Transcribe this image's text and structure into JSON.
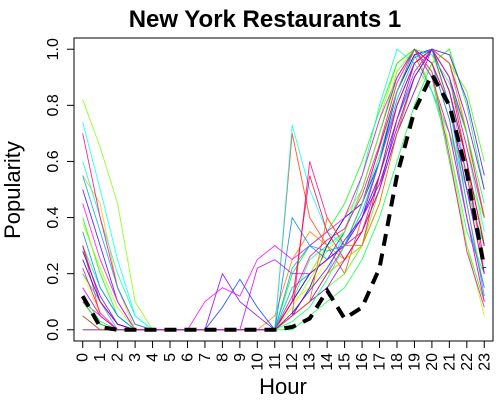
{
  "chart_data": {
    "type": "line",
    "title": "New York Restaurants 1",
    "xlabel": "Hour",
    "ylabel": "Popularity",
    "x": [
      0,
      1,
      2,
      3,
      4,
      5,
      6,
      7,
      8,
      9,
      10,
      11,
      12,
      13,
      14,
      15,
      16,
      17,
      18,
      19,
      20,
      21,
      22,
      23
    ],
    "x_tick_labels": [
      "0",
      "1",
      "2",
      "3",
      "4",
      "5",
      "6",
      "7",
      "8",
      "9",
      "10",
      "11",
      "12",
      "13",
      "14",
      "15",
      "16",
      "17",
      "18",
      "19",
      "20",
      "21",
      "22",
      "23"
    ],
    "y_ticks": [
      0.0,
      0.2,
      0.4,
      0.6,
      0.8,
      1.0
    ],
    "y_tick_labels": [
      "0.0",
      "0.2",
      "0.4",
      "0.6",
      "0.8",
      "1.0"
    ],
    "xlim": [
      -0.5,
      23.5
    ],
    "ylim": [
      -0.04,
      1.04
    ],
    "grid": false,
    "series": [
      {
        "color": "#ff0000",
        "values": [
          0.1,
          0.02,
          0,
          0,
          0,
          0,
          0,
          0,
          0,
          0,
          0,
          0,
          0.05,
          0.1,
          0.2,
          0.25,
          0.3,
          0.55,
          0.8,
          0.95,
          1.0,
          0.9,
          0.6,
          0.2
        ]
      },
      {
        "color": "#ff4000",
        "values": [
          0.3,
          0.05,
          0,
          0,
          0,
          0,
          0,
          0,
          0,
          0,
          0,
          0,
          0.7,
          0.4,
          0.3,
          0.2,
          0.4,
          0.6,
          0.85,
          0.98,
          0.85,
          0.7,
          0.4,
          0.1
        ]
      },
      {
        "color": "#ff8000",
        "values": [
          0,
          0,
          0,
          0,
          0,
          0,
          0,
          0,
          0,
          0,
          0,
          0.05,
          0.25,
          0.35,
          0.3,
          0.25,
          0.35,
          0.5,
          0.7,
          0.9,
          1.0,
          0.8,
          0.5,
          0.3
        ]
      },
      {
        "color": "#ffbf00",
        "values": [
          0.55,
          0.45,
          0.15,
          0,
          0,
          0,
          0,
          0,
          0,
          0,
          0,
          0,
          0.1,
          0.2,
          0.3,
          0.4,
          0.5,
          0.7,
          0.9,
          1.0,
          0.95,
          0.75,
          0.45,
          0.15
        ]
      },
      {
        "color": "#ffff00",
        "values": [
          0.2,
          0.05,
          0,
          0,
          0,
          0,
          0,
          0,
          0,
          0,
          0,
          0,
          0.05,
          0.15,
          0.25,
          0.3,
          0.45,
          0.65,
          0.9,
          1.0,
          0.98,
          0.8,
          0.5,
          0.25
        ]
      },
      {
        "color": "#bfff00",
        "values": [
          0,
          0,
          0,
          0,
          0,
          0,
          0,
          0,
          0,
          0,
          0,
          0,
          0.1,
          0.15,
          0.2,
          0.25,
          0.3,
          0.45,
          0.7,
          0.85,
          0.95,
          1.0,
          0.7,
          0.3
        ]
      },
      {
        "color": "#80ff00",
        "values": [
          0.82,
          0.65,
          0.45,
          0.1,
          0,
          0,
          0,
          0,
          0,
          0,
          0,
          0,
          0.15,
          0.2,
          0.3,
          0.4,
          0.55,
          0.75,
          0.95,
          1.0,
          0.9,
          0.7,
          0.55,
          0.4
        ]
      },
      {
        "color": "#40ff00",
        "values": [
          0.05,
          0,
          0,
          0,
          0,
          0,
          0,
          0,
          0,
          0,
          0,
          0,
          0.05,
          0.1,
          0.15,
          0.2,
          0.3,
          0.5,
          0.75,
          0.9,
          1.0,
          0.95,
          0.85,
          0.6
        ]
      },
      {
        "color": "#00ff00",
        "values": [
          0.4,
          0.2,
          0.05,
          0,
          0,
          0,
          0,
          0,
          0,
          0,
          0,
          0,
          0.2,
          0.3,
          0.35,
          0.45,
          0.6,
          0.78,
          0.95,
          1.0,
          0.9,
          0.6,
          0.3,
          0.1
        ]
      },
      {
        "color": "#00ff40",
        "values": [
          0.1,
          0.02,
          0,
          0,
          0,
          0,
          0,
          0,
          0,
          0,
          0,
          0,
          0,
          0.05,
          0.1,
          0.15,
          0.25,
          0.4,
          0.6,
          0.8,
          0.95,
          1.0,
          0.8,
          0.5
        ]
      },
      {
        "color": "#00ff80",
        "values": [
          0.3,
          0.15,
          0.05,
          0,
          0,
          0,
          0,
          0,
          0,
          0,
          0,
          0,
          0.1,
          0.25,
          0.3,
          0.35,
          0.5,
          0.7,
          0.92,
          1.0,
          0.85,
          0.65,
          0.35,
          0.2
        ]
      },
      {
        "color": "#00ffbf",
        "values": [
          0.6,
          0.4,
          0.2,
          0.05,
          0,
          0,
          0,
          0,
          0,
          0,
          0,
          0,
          0.05,
          0.1,
          0.2,
          0.35,
          0.55,
          0.8,
          1.0,
          0.95,
          0.85,
          0.7,
          0.5,
          0.3
        ]
      },
      {
        "color": "#00ffff",
        "values": [
          0.74,
          0.5,
          0.25,
          0.05,
          0,
          0,
          0,
          0,
          0,
          0,
          0,
          0,
          0.73,
          0.5,
          0.35,
          0.3,
          0.4,
          0.55,
          0.8,
          0.95,
          1.0,
          0.9,
          0.65,
          0.35
        ]
      },
      {
        "color": "#00bfff",
        "values": [
          0.2,
          0.1,
          0,
          0,
          0,
          0,
          0,
          0,
          0,
          0,
          0,
          0,
          0.15,
          0.2,
          0.25,
          0.3,
          0.35,
          0.5,
          0.75,
          0.9,
          1.0,
          0.85,
          0.55,
          0.25
        ]
      },
      {
        "color": "#0080ff",
        "values": [
          0.35,
          0.15,
          0.05,
          0,
          0,
          0,
          0,
          0,
          0,
          0,
          0,
          0,
          0.4,
          0.3,
          0.25,
          0.3,
          0.45,
          0.65,
          0.85,
          1.0,
          0.95,
          0.75,
          0.4,
          0.15
        ]
      },
      {
        "color": "#0040ff",
        "values": [
          0.05,
          0,
          0,
          0,
          0,
          0,
          0,
          0,
          0.08,
          0.18,
          0.08,
          0,
          0.1,
          0.2,
          0.25,
          0.35,
          0.5,
          0.7,
          0.9,
          1.0,
          0.95,
          0.8,
          0.5,
          0.2
        ]
      },
      {
        "color": "#0000ff",
        "values": [
          0.25,
          0.1,
          0.02,
          0,
          0,
          0,
          0,
          0,
          0,
          0,
          0,
          0,
          0.05,
          0.15,
          0.3,
          0.4,
          0.45,
          0.6,
          0.85,
          0.98,
          1.0,
          0.85,
          0.6,
          0.3
        ]
      },
      {
        "color": "#4000ff",
        "values": [
          0.5,
          0.3,
          0.1,
          0,
          0,
          0,
          0,
          0,
          0,
          0,
          0,
          0,
          0.1,
          0.2,
          0.25,
          0.3,
          0.4,
          0.55,
          0.75,
          0.95,
          1.0,
          0.9,
          0.7,
          0.4
        ]
      },
      {
        "color": "#8000ff",
        "values": [
          0,
          0,
          0,
          0,
          0,
          0,
          0,
          0,
          0.2,
          0.1,
          0.05,
          0,
          0.05,
          0.1,
          0.15,
          0.25,
          0.35,
          0.5,
          0.7,
          0.85,
          1.0,
          0.95,
          0.75,
          0.5
        ]
      },
      {
        "color": "#bf00ff",
        "values": [
          0.15,
          0.05,
          0,
          0,
          0,
          0,
          0,
          0,
          0,
          0,
          0.22,
          0.25,
          0.2,
          0.2,
          0.25,
          0.3,
          0.4,
          0.6,
          0.8,
          0.95,
          1.0,
          0.8,
          0.5,
          0.2
        ]
      },
      {
        "color": "#ff00ff",
        "values": [
          0.45,
          0.25,
          0.1,
          0,
          0,
          0,
          0,
          0.1,
          0.15,
          0.12,
          0.25,
          0.3,
          0.25,
          0.3,
          0.35,
          0.4,
          0.55,
          0.75,
          0.9,
          1.0,
          0.9,
          0.7,
          0.4,
          0.1
        ]
      },
      {
        "color": "#ff00bf",
        "values": [
          0.1,
          0.05,
          0,
          0,
          0,
          0,
          0,
          0,
          0,
          0,
          0,
          0,
          0.05,
          0.1,
          0.2,
          0.3,
          0.35,
          0.5,
          0.75,
          0.92,
          1.0,
          0.9,
          0.65,
          0.4
        ]
      },
      {
        "color": "#ff0080",
        "values": [
          0.7,
          0.4,
          0.15,
          0.02,
          0,
          0,
          0,
          0,
          0,
          0,
          0,
          0,
          0.05,
          0.6,
          0.4,
          0.3,
          0.45,
          0.65,
          0.85,
          1.0,
          0.95,
          0.8,
          0.55,
          0.25
        ]
      },
      {
        "color": "#ff0040",
        "values": [
          0.3,
          0.1,
          0.02,
          0,
          0,
          0,
          0,
          0,
          0,
          0,
          0,
          0,
          0.1,
          0.55,
          0.35,
          0.25,
          0.35,
          0.55,
          0.8,
          0.95,
          1.0,
          0.85,
          0.6,
          0.3
        ]
      },
      {
        "color": "#ff6000",
        "values": [
          0.05,
          0,
          0,
          0,
          0,
          0,
          0,
          0,
          0,
          0,
          0,
          0,
          0.05,
          0.1,
          0.4,
          0.3,
          0.3,
          0.45,
          0.7,
          0.9,
          1.0,
          0.95,
          0.7,
          0.4
        ]
      },
      {
        "color": "#a0ff00",
        "values": [
          0.38,
          0.22,
          0.08,
          0,
          0,
          0,
          0,
          0,
          0,
          0,
          0,
          0,
          0.08,
          0.18,
          0.28,
          0.35,
          0.5,
          0.7,
          0.92,
          1.0,
          0.92,
          0.65,
          0.3,
          0.05
        ]
      },
      {
        "color": "#00ff60",
        "values": [
          0.12,
          0.03,
          0,
          0,
          0,
          0,
          0,
          0,
          0,
          0,
          0,
          0,
          0.03,
          0.08,
          0.18,
          0.3,
          0.45,
          0.62,
          0.85,
          1.0,
          0.98,
          0.88,
          0.7,
          0.45
        ]
      },
      {
        "color": "#00a0ff",
        "values": [
          0.55,
          0.35,
          0.15,
          0.02,
          0,
          0,
          0,
          0,
          0,
          0,
          0,
          0,
          0.22,
          0.3,
          0.28,
          0.3,
          0.42,
          0.6,
          0.82,
          0.97,
          1.0,
          0.8,
          0.45,
          0.12
        ]
      },
      {
        "color": "#6000ff",
        "values": [
          0.28,
          0.12,
          0.02,
          0,
          0,
          0,
          0,
          0,
          0,
          0,
          0,
          0,
          0.06,
          0.14,
          0.22,
          0.32,
          0.4,
          0.52,
          0.72,
          0.9,
          1.0,
          0.98,
          0.82,
          0.55
        ]
      },
      {
        "color": "#ff00a0",
        "values": [
          0.22,
          0.06,
          0,
          0,
          0,
          0,
          0,
          0,
          0,
          0,
          0,
          0,
          0.12,
          0.26,
          0.32,
          0.36,
          0.48,
          0.66,
          0.88,
          1.0,
          0.92,
          0.62,
          0.28,
          0.08
        ]
      }
    ],
    "mean": {
      "style": "black-dashed",
      "values": [
        0.12,
        0.01,
        0,
        0,
        0,
        0,
        0,
        0,
        0,
        0,
        0,
        0,
        0.01,
        0.04,
        0.14,
        0.04,
        0.08,
        0.22,
        0.55,
        0.78,
        0.91,
        0.8,
        0.56,
        0.22
      ]
    }
  }
}
